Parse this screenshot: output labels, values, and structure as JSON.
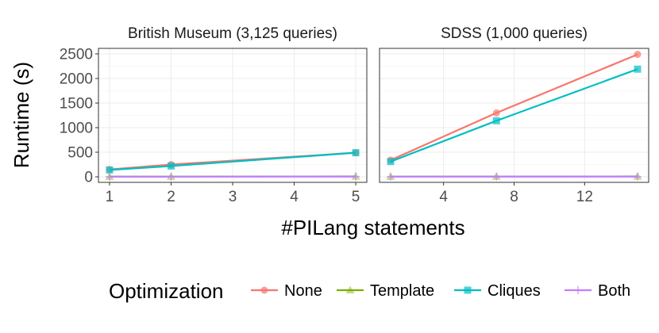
{
  "chart_data": {
    "type": "line",
    "ylabel": "Runtime (s)",
    "xlabel": "#PILang statements",
    "legend": {
      "title": "Optimization",
      "placement": "bottom",
      "entries": [
        "None",
        "Template",
        "Cliques",
        "Both"
      ]
    },
    "colors": {
      "None": "#F8766D",
      "Template": "#7CAE00",
      "Cliques": "#00BFC4",
      "Both": "#C77CFF"
    },
    "ylim": [
      0,
      2500
    ],
    "yticks": [
      0,
      500,
      1000,
      1500,
      2000,
      2500
    ],
    "grid": true,
    "facets": [
      {
        "title": "British Museum (3,125 queries)",
        "xlim": [
          1,
          5
        ],
        "xticks": [
          1,
          2,
          3,
          4,
          5
        ],
        "series": [
          {
            "name": "None",
            "x": [
              1,
              2,
              5
            ],
            "y": [
              150,
              250,
              490
            ]
          },
          {
            "name": "Template",
            "x": [
              1,
              2,
              5
            ],
            "y": [
              5,
              5,
              8
            ]
          },
          {
            "name": "Cliques",
            "x": [
              1,
              2,
              5
            ],
            "y": [
              140,
              220,
              490
            ]
          },
          {
            "name": "Both",
            "x": [
              1,
              2,
              5
            ],
            "y": [
              3,
              3,
              5
            ]
          }
        ]
      },
      {
        "title": "SDSS (1,000 queries)",
        "xlim": [
          1,
          15
        ],
        "xticks": [
          4,
          8,
          12
        ],
        "series": [
          {
            "name": "None",
            "x": [
              1,
              7,
              15
            ],
            "y": [
              340,
              1300,
              2490
            ]
          },
          {
            "name": "Template",
            "x": [
              1,
              7,
              15
            ],
            "y": [
              5,
              6,
              8
            ]
          },
          {
            "name": "Cliques",
            "x": [
              1,
              7,
              15
            ],
            "y": [
              310,
              1140,
              2190
            ]
          },
          {
            "name": "Both",
            "x": [
              1,
              7,
              15
            ],
            "y": [
              3,
              4,
              5
            ]
          }
        ]
      }
    ]
  }
}
